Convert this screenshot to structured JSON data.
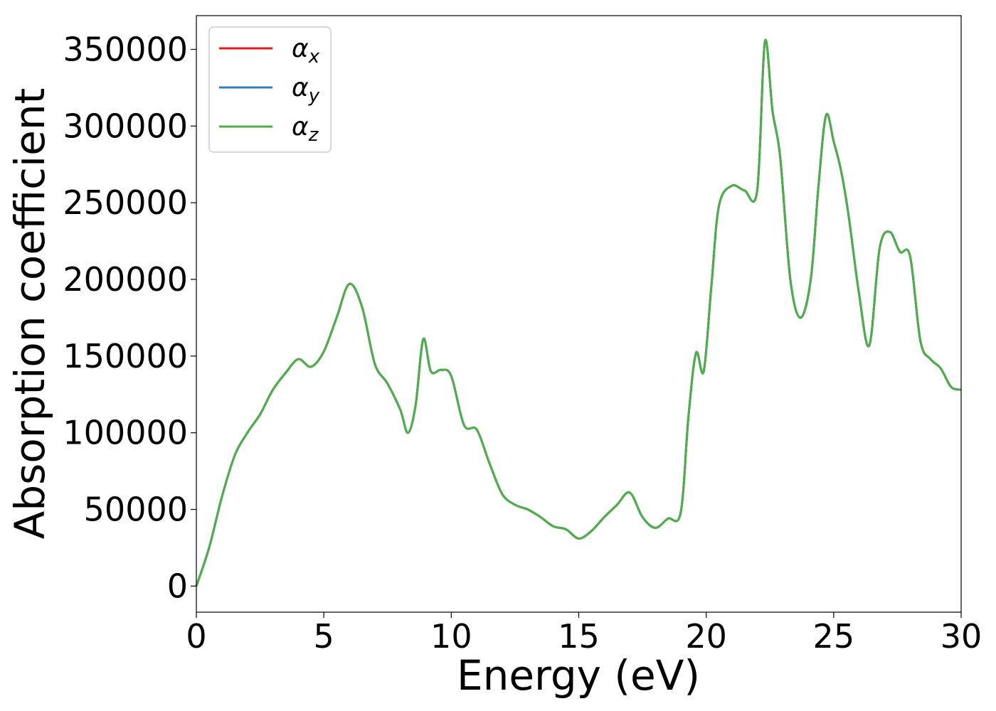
{
  "chart_data": {
    "type": "line",
    "xlabel": "Energy (eV)",
    "ylabel": "Absorption coefficient",
    "xlim": [
      0,
      30
    ],
    "ylim": [
      -17000,
      372000
    ],
    "x_ticks": [
      "0",
      "5",
      "10",
      "15",
      "20",
      "25",
      "30"
    ],
    "y_ticks": [
      "0",
      "50000",
      "100000",
      "150000",
      "200000",
      "250000",
      "300000",
      "350000"
    ],
    "grid": false,
    "legend_position": "top-left",
    "series": [
      {
        "name": "α",
        "subscript": "x",
        "color": "#e41a1c"
      },
      {
        "name": "α",
        "subscript": "y",
        "color": "#377eb8"
      },
      {
        "name": "α",
        "subscript": "z",
        "color": "#4daf4a"
      }
    ],
    "x": [
      0,
      0.5,
      1,
      1.5,
      2,
      2.5,
      3,
      3.5,
      4,
      4.5,
      5,
      5.5,
      6,
      6.5,
      7,
      7.5,
      8,
      8.3,
      8.6,
      8.9,
      9.2,
      9.6,
      10,
      10.5,
      11,
      11.5,
      12,
      12.5,
      13,
      13.5,
      14,
      14.5,
      15,
      15.5,
      16,
      16.5,
      17,
      17.5,
      18,
      18.5,
      19,
      19.3,
      19.6,
      19.9,
      20.2,
      20.5,
      21,
      21.5,
      22,
      22.3,
      22.6,
      22.9,
      23.3,
      23.7,
      24.1,
      24.4,
      24.7,
      25,
      25.3,
      25.6,
      26,
      26.4,
      26.8,
      27.2,
      27.6,
      28,
      28.4,
      28.8,
      29.2,
      29.6,
      30
    ],
    "values": [
      0,
      25000,
      58000,
      85000,
      100000,
      112000,
      128000,
      139000,
      148000,
      143000,
      153000,
      175000,
      197000,
      182000,
      145000,
      132000,
      115000,
      100000,
      118000,
      161000,
      140000,
      141000,
      137000,
      105000,
      102000,
      80000,
      60000,
      53000,
      50000,
      45000,
      39000,
      37000,
      31000,
      36000,
      45000,
      53000,
      61000,
      45000,
      38000,
      44000,
      48000,
      110000,
      152000,
      140000,
      195000,
      248000,
      261000,
      258000,
      258000,
      355000,
      310000,
      280000,
      200000,
      175000,
      200000,
      260000,
      307000,
      290000,
      270000,
      240000,
      190000,
      157000,
      220000,
      231000,
      218000,
      215000,
      160000,
      148000,
      142000,
      130000,
      128000
    ]
  }
}
